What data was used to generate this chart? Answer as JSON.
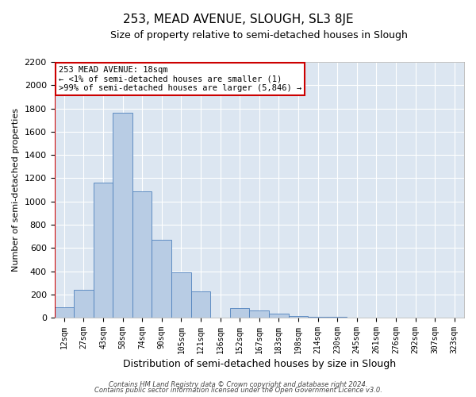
{
  "title": "253, MEAD AVENUE, SLOUGH, SL3 8JE",
  "subtitle": "Size of property relative to semi-detached houses in Slough",
  "xlabel": "Distribution of semi-detached houses by size in Slough",
  "ylabel": "Number of semi-detached properties",
  "bar_labels": [
    "12sqm",
    "27sqm",
    "43sqm",
    "58sqm",
    "74sqm",
    "90sqm",
    "105sqm",
    "121sqm",
    "136sqm",
    "152sqm",
    "167sqm",
    "183sqm",
    "198sqm",
    "214sqm",
    "230sqm",
    "245sqm",
    "261sqm",
    "276sqm",
    "292sqm",
    "307sqm",
    "323sqm"
  ],
  "bar_values": [
    90,
    240,
    1160,
    1760,
    1090,
    670,
    390,
    225,
    0,
    85,
    65,
    35,
    15,
    10,
    5,
    0,
    0,
    0,
    0,
    0,
    0
  ],
  "bar_color": "#b8cce4",
  "bar_edge_color": "#4f81bd",
  "annotation_title": "253 MEAD AVENUE: 18sqm",
  "annotation_line1": "← <1% of semi-detached houses are smaller (1)",
  "annotation_line2": ">99% of semi-detached houses are larger (5,846) →",
  "annotation_box_color": "#ffffff",
  "annotation_border_color": "#cc0000",
  "red_line_x": -0.5,
  "ylim": [
    0,
    2200
  ],
  "yticks": [
    0,
    200,
    400,
    600,
    800,
    1000,
    1200,
    1400,
    1600,
    1800,
    2000,
    2200
  ],
  "background_color": "#ffffff",
  "plot_bg_color": "#dce6f1",
  "grid_color": "#ffffff",
  "footer_line1": "Contains HM Land Registry data © Crown copyright and database right 2024.",
  "footer_line2": "Contains public sector information licensed under the Open Government Licence v3.0."
}
